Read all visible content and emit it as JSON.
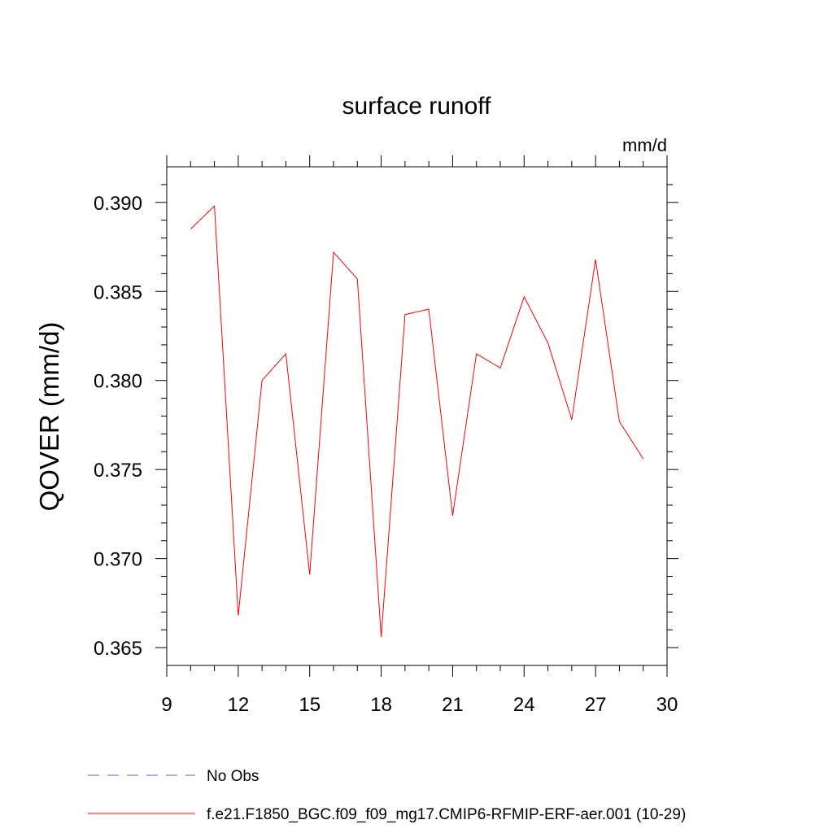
{
  "chart_data": {
    "type": "line",
    "title": "surface runoff",
    "units_label": "mm/d",
    "ylabel": "QOVER  (mm/d)",
    "xlabel": "",
    "xlim": [
      9,
      30
    ],
    "ylim": [
      0.364,
      0.392
    ],
    "x_ticks": [
      9,
      12,
      15,
      18,
      21,
      24,
      27,
      30
    ],
    "x_tick_labels": [
      "9",
      "12",
      "15",
      "18",
      "21",
      "24",
      "27",
      "30"
    ],
    "y_ticks": [
      0.365,
      0.37,
      0.375,
      0.38,
      0.385,
      0.39
    ],
    "y_tick_labels": [
      "0.365",
      "0.370",
      "0.375",
      "0.380",
      "0.385",
      "0.390"
    ],
    "grid": false,
    "legend_position": "bottom-left",
    "series": [
      {
        "name": "f.e21.F1850_BGC.f09_f09_mg17.CMIP6-RFMIP-ERF-aer.001 (10-29)",
        "color": "#ff0000",
        "style": "solid",
        "x": [
          10,
          11,
          12,
          13,
          14,
          15,
          16,
          17,
          18,
          19,
          20,
          21,
          22,
          23,
          24,
          25,
          26,
          27,
          28,
          29
        ],
        "values": [
          0.3885,
          0.3898,
          0.3668,
          0.38,
          0.3815,
          0.3691,
          0.3872,
          0.3857,
          0.3656,
          0.3837,
          0.384,
          0.3724,
          0.3815,
          0.3807,
          0.3847,
          0.3821,
          0.3778,
          0.3868,
          0.3777,
          0.3756
        ]
      }
    ],
    "legend": [
      {
        "label": "No Obs",
        "color": "#6a5acd",
        "style": "dashed"
      },
      {
        "label": "f.e21.F1850_BGC.f09_f09_mg17.CMIP6-RFMIP-ERF-aer.001 (10-29)",
        "color": "#ff0000",
        "style": "solid"
      }
    ]
  }
}
